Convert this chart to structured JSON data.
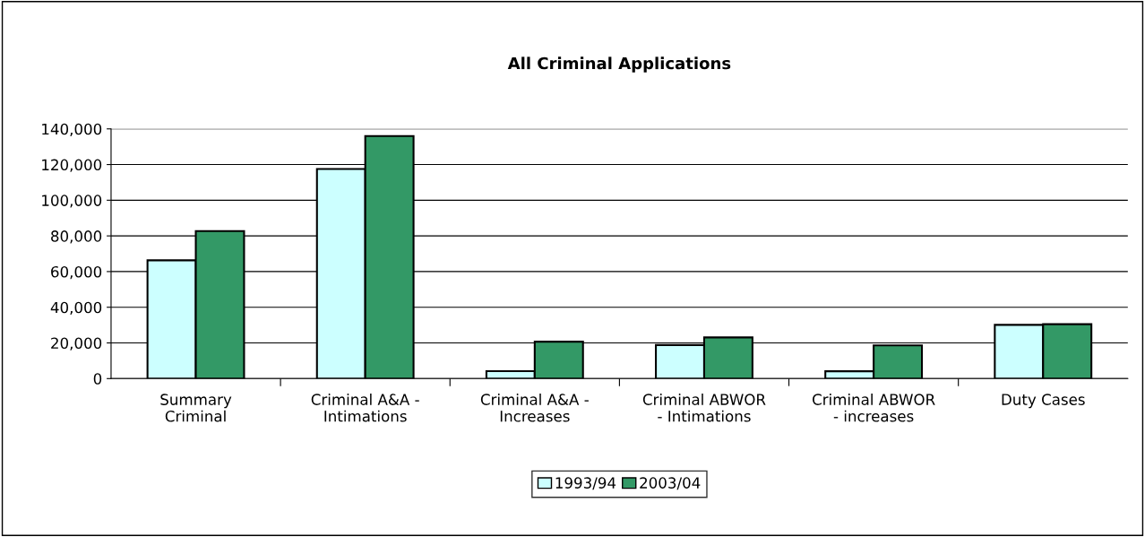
{
  "chart_data": {
    "type": "bar",
    "title": "All Criminal Applications",
    "categories": [
      "Summary\nCriminal",
      "Criminal A&A -\nIntimations",
      "Criminal A&A -\nIncreases",
      "Criminal ABWOR\n- Intimations",
      "Criminal ABWOR\n- increases",
      "Duty Cases"
    ],
    "series": [
      {
        "name": "1993/94",
        "color": "#ccffff",
        "values": [
          66300,
          117500,
          4200,
          18800,
          4100,
          30100
        ]
      },
      {
        "name": "2003/04",
        "color": "#339966",
        "values": [
          82700,
          136000,
          20700,
          23100,
          18600,
          30500
        ]
      }
    ],
    "ylim": [
      0,
      140000
    ],
    "yticks": [
      {
        "value": 0,
        "label": "0"
      },
      {
        "value": 20000,
        "label": "20,000"
      },
      {
        "value": 40000,
        "label": "40,000"
      },
      {
        "value": 60000,
        "label": "60,000"
      },
      {
        "value": 80000,
        "label": "80,000"
      },
      {
        "value": 100000,
        "label": "100,000"
      },
      {
        "value": 120000,
        "label": "120,000"
      },
      {
        "value": 140000,
        "label": "140,000"
      }
    ],
    "grid": "y",
    "legend": "bottom"
  }
}
